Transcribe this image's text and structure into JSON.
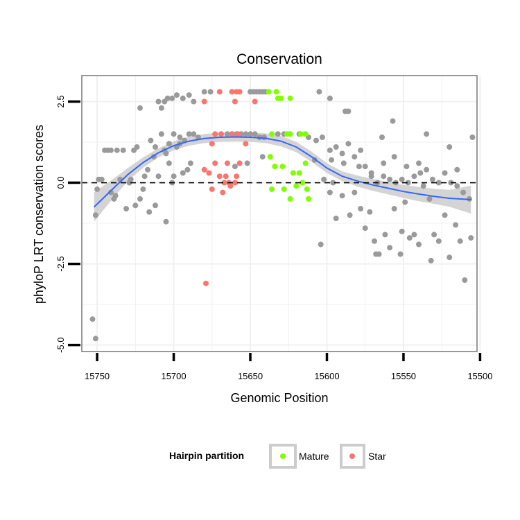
{
  "chart_data": {
    "type": "scatter",
    "title": "Conservation",
    "xlabel": "Genomic Position",
    "ylabel": "phyloP LRT conservation scores",
    "x_reversed": true,
    "xlim": [
      15502,
      15760
    ],
    "ylim": [
      -5.2,
      3.3
    ],
    "x_ticks": [
      15750,
      15700,
      15650,
      15600,
      15550,
      15500
    ],
    "x_tick_labels": [
      "15750",
      "15700",
      "15650",
      "15600",
      "15550",
      "15500"
    ],
    "y_ticks": [
      2.5,
      0.0,
      -2.5,
      -5.0
    ],
    "y_tick_labels": [
      "2.5",
      "0.0",
      "-2.5",
      "-5.0"
    ],
    "reference_line": {
      "y": 0,
      "style": "dashed"
    },
    "grid": true,
    "legend": {
      "title": "Hairpin partition",
      "position": "bottom",
      "entries": [
        {
          "label": "Mature",
          "color": "#7FFF00"
        },
        {
          "label": "Star",
          "color": "#F8766D"
        }
      ]
    },
    "colors": {
      "background": "#ffffff",
      "other_points": "#9A9A9A",
      "mature": "#7FFF00",
      "star": "#F8766D",
      "smooth_line": "#3366FF",
      "ribbon": "#CCCCCC"
    },
    "series": [
      {
        "group": "other",
        "points": [
          [
            15753,
            -4.2
          ],
          [
            15751,
            -4.8
          ],
          [
            15751,
            -1.0
          ],
          [
            15750,
            -0.2
          ],
          [
            15749,
            0.1
          ],
          [
            15747,
            0.1
          ],
          [
            15745,
            1.0
          ],
          [
            15743,
            1.0
          ],
          [
            15741,
            1.0
          ],
          [
            15739,
            -0.5
          ],
          [
            15738,
            -0.4
          ],
          [
            15737,
            1.0
          ],
          [
            15735,
            0.1
          ],
          [
            15733,
            1.0
          ],
          [
            15731,
            -0.8
          ],
          [
            15729,
            0.0
          ],
          [
            15728,
            0.1
          ],
          [
            15726,
            1.0
          ],
          [
            15724,
            1.1
          ],
          [
            15722,
            -0.5
          ],
          [
            15720,
            -0.2
          ],
          [
            15719,
            0.2
          ],
          [
            15717,
            0.4
          ],
          [
            15715,
            1.3
          ],
          [
            15713,
            0.8
          ],
          [
            15712,
            1.1
          ],
          [
            15710,
            0.2
          ],
          [
            15708,
            1.5
          ],
          [
            15706,
            1.0
          ],
          [
            15705,
            0.9
          ],
          [
            15703,
            1.2
          ],
          [
            15701,
            0.0
          ],
          [
            15700,
            0.2
          ],
          [
            15698,
            1.1
          ],
          [
            15696,
            1.2
          ],
          [
            15694,
            0.3
          ],
          [
            15691,
            0.4
          ],
          [
            15689,
            0.6
          ],
          [
            15716,
            -0.9
          ],
          [
            15712,
            -0.7
          ],
          [
            15710,
            2.5
          ],
          [
            15708,
            2.3
          ],
          [
            15706,
            2.5
          ],
          [
            15704,
            2.6
          ],
          [
            15701,
            2.6
          ],
          [
            15698,
            2.7
          ],
          [
            15694,
            2.6
          ],
          [
            15690,
            2.7
          ],
          [
            15687,
            2.5
          ],
          [
            15700,
            1.5
          ],
          [
            15696,
            1.4
          ],
          [
            15693,
            1.3
          ],
          [
            15690,
            1.5
          ],
          [
            15687,
            1.5
          ],
          [
            15684,
            1.4
          ],
          [
            15705,
            -1.2
          ],
          [
            15722,
            2.3
          ],
          [
            15680,
            2.8
          ],
          [
            15676,
            2.8
          ],
          [
            15650,
            2.8
          ],
          [
            15648,
            2.8
          ],
          [
            15646,
            2.8
          ],
          [
            15644,
            2.8
          ],
          [
            15642,
            2.8
          ],
          [
            15640,
            2.8
          ],
          [
            15665,
            1.5
          ],
          [
            15662,
            1.5
          ],
          [
            15659,
            1.5
          ],
          [
            15656,
            1.5
          ],
          [
            15653,
            1.5
          ],
          [
            15650,
            1.5
          ],
          [
            15647,
            1.5
          ],
          [
            15644,
            1.4
          ],
          [
            15641,
            1.4
          ],
          [
            15632,
            1.5
          ],
          [
            15628,
            1.5
          ],
          [
            15618,
            1.5
          ],
          [
            15612,
            1.4
          ],
          [
            15607,
            1.3
          ],
          [
            15603,
            1.4
          ],
          [
            15598,
            1.0
          ],
          [
            15594,
            1.1
          ],
          [
            15590,
            0.9
          ],
          [
            15586,
            1.2
          ],
          [
            15582,
            0.8
          ],
          [
            15578,
            1.0
          ],
          [
            15575,
            0.5
          ],
          [
            15571,
            0.3
          ],
          [
            15567,
            0.0
          ],
          [
            15563,
            0.2
          ],
          [
            15559,
            0.1
          ],
          [
            15555,
            0.0
          ],
          [
            15551,
            0.1
          ],
          [
            15547,
            0.0
          ],
          [
            15543,
            0.2
          ],
          [
            15539,
            0.3
          ],
          [
            15535,
            0.4
          ],
          [
            15531,
            0.1
          ],
          [
            15527,
            0.0
          ],
          [
            15523,
            0.3
          ],
          [
            15519,
            0.0
          ],
          [
            15515,
            -0.1
          ],
          [
            15511,
            -0.3
          ],
          [
            15507,
            -0.5
          ],
          [
            15605,
            2.8
          ],
          [
            15598,
            2.6
          ],
          [
            15588,
            2.2
          ],
          [
            15586,
            2.2
          ],
          [
            15564,
            1.4
          ],
          [
            15557,
            1.9
          ],
          [
            15535,
            1.5
          ],
          [
            15520,
            1.1
          ],
          [
            15505,
            1.4
          ],
          [
            15602,
            0.1
          ],
          [
            15598,
            -0.3
          ],
          [
            15596,
            0.0
          ],
          [
            15590,
            -0.4
          ],
          [
            15585,
            -1.0
          ],
          [
            15582,
            -0.3
          ],
          [
            15578,
            -0.8
          ],
          [
            15575,
            -1.4
          ],
          [
            15572,
            -0.9
          ],
          [
            15569,
            -1.8
          ],
          [
            15566,
            -2.2
          ],
          [
            15562,
            -1.6
          ],
          [
            15559,
            -2.0
          ],
          [
            15556,
            -0.8
          ],
          [
            15552,
            -2.2
          ],
          [
            15549,
            -0.6
          ],
          [
            15546,
            -1.7
          ],
          [
            15543,
            -1.6
          ],
          [
            15540,
            -1.9
          ],
          [
            15537,
            -0.1
          ],
          [
            15533,
            -0.5
          ],
          [
            15530,
            -1.6
          ],
          [
            15527,
            -1.8
          ],
          [
            15523,
            -1.0
          ],
          [
            15520,
            -2.3
          ],
          [
            15516,
            -1.3
          ],
          [
            15513,
            -1.8
          ],
          [
            15510,
            -3.0
          ],
          [
            15506,
            -1.7
          ],
          [
            15604,
            -1.9
          ],
          [
            15594,
            -1.1
          ],
          [
            15568,
            -2.2
          ],
          [
            15551,
            -1.5
          ],
          [
            15532,
            -2.4
          ],
          [
            15515,
            0.4
          ],
          [
            15540,
            0.6
          ],
          [
            15548,
            0.5
          ],
          [
            15556,
            0.8
          ],
          [
            15563,
            0.6
          ],
          [
            15571,
            0.2
          ],
          [
            15579,
            0.5
          ],
          [
            15589,
            0.6
          ],
          [
            15597,
            0.7
          ],
          [
            15608,
            0.7
          ],
          [
            15642,
            0.8
          ],
          [
            15652,
            0.6
          ],
          [
            15660,
            0.5
          ],
          [
            15703,
            0.6
          ],
          [
            15725,
            -0.7
          ],
          [
            15741,
            -0.3
          ]
        ]
      },
      {
        "group": "Mature",
        "points": [
          [
            15638,
            2.8
          ],
          [
            15633,
            2.8
          ],
          [
            15632,
            2.6
          ],
          [
            15630,
            2.6
          ],
          [
            15624,
            2.6
          ],
          [
            15636,
            1.5
          ],
          [
            15626,
            1.5
          ],
          [
            15624,
            1.5
          ],
          [
            15617,
            1.5
          ],
          [
            15614,
            1.5
          ],
          [
            15637,
            0.8
          ],
          [
            15634,
            0.5
          ],
          [
            15629,
            0.5
          ],
          [
            15622,
            0.3
          ],
          [
            15618,
            0.3
          ],
          [
            15614,
            0.6
          ],
          [
            15636,
            -0.2
          ],
          [
            15628,
            -0.2
          ],
          [
            15620,
            -0.1
          ],
          [
            15613,
            -0.2
          ],
          [
            15624,
            -0.5
          ],
          [
            15612,
            -0.5
          ],
          [
            15616,
            0.0
          ]
        ]
      },
      {
        "group": "Star",
        "points": [
          [
            15680,
            2.5
          ],
          [
            15670,
            2.8
          ],
          [
            15662,
            2.8
          ],
          [
            15659,
            2.8
          ],
          [
            15657,
            2.8
          ],
          [
            15660,
            2.5
          ],
          [
            15647,
            2.5
          ],
          [
            15669,
            1.5
          ],
          [
            15673,
            1.5
          ],
          [
            15658,
            1.5
          ],
          [
            15662,
            1.5
          ],
          [
            15673,
            0.6
          ],
          [
            15677,
            0.3
          ],
          [
            15675,
            -0.2
          ],
          [
            15667,
            0.0
          ],
          [
            15664,
            0.0
          ],
          [
            15660,
            0.0
          ],
          [
            15665,
            0.6
          ],
          [
            15670,
            0.2
          ],
          [
            15657,
            0.6
          ],
          [
            15680,
            0.4
          ],
          [
            15668,
            -0.3
          ],
          [
            15663,
            -0.1
          ],
          [
            15679,
            -3.1
          ],
          [
            15659,
            0.2
          ],
          [
            15666,
            0.2
          ],
          [
            15653,
            1.2
          ],
          [
            15675,
            1.2
          ]
        ]
      }
    ],
    "smooth_curve": {
      "x": [
        15752,
        15740,
        15730,
        15720,
        15710,
        15700,
        15690,
        15680,
        15670,
        15660,
        15650,
        15640,
        15630,
        15620,
        15610,
        15600,
        15590,
        15580,
        15570,
        15560,
        15550,
        15540,
        15530,
        15520,
        15506
      ],
      "y": [
        -0.75,
        -0.2,
        0.25,
        0.62,
        0.92,
        1.14,
        1.28,
        1.36,
        1.4,
        1.41,
        1.4,
        1.37,
        1.28,
        1.1,
        0.8,
        0.45,
        0.2,
        0.05,
        -0.07,
        -0.17,
        -0.27,
        -0.35,
        -0.42,
        -0.48,
        -0.52
      ],
      "lower": [
        -1.2,
        -0.5,
        0.05,
        0.46,
        0.78,
        1.0,
        1.14,
        1.22,
        1.26,
        1.27,
        1.26,
        1.22,
        1.12,
        0.94,
        0.64,
        0.3,
        0.05,
        -0.12,
        -0.25,
        -0.36,
        -0.47,
        -0.57,
        -0.65,
        -0.74,
        -0.95
      ],
      "upper": [
        -0.3,
        0.1,
        0.45,
        0.78,
        1.06,
        1.28,
        1.42,
        1.5,
        1.54,
        1.55,
        1.54,
        1.52,
        1.44,
        1.26,
        0.96,
        0.6,
        0.35,
        0.22,
        0.11,
        0.02,
        -0.07,
        -0.13,
        -0.19,
        -0.22,
        -0.09
      ]
    }
  }
}
